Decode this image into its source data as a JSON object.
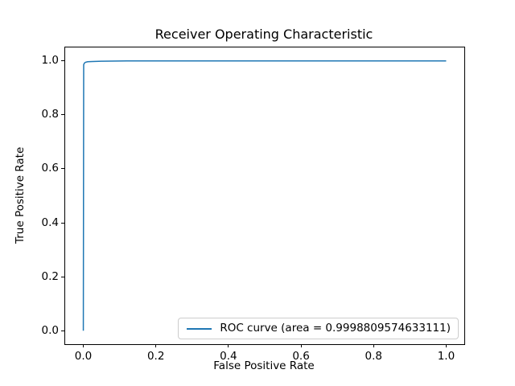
{
  "figure": {
    "background_color": "#ffffff",
    "title": "Receiver Operating Characteristic"
  },
  "axes": {
    "xlabel": "False Positive Rate",
    "ylabel": "True Positive Rate",
    "x_tick_labels": [
      "0.0",
      "0.2",
      "0.4",
      "0.6",
      "0.8",
      "1.0"
    ],
    "y_tick_labels": [
      "0.0",
      "0.2",
      "0.4",
      "0.6",
      "0.8",
      "1.0"
    ],
    "spine_color": "#000000",
    "grid": false
  },
  "legend": {
    "label": "ROC curve (area = 0.9998809574633111)",
    "line_color": "#1f77b4",
    "position": "lower right",
    "border_color": "#cccccc"
  },
  "chart_data": {
    "type": "line",
    "title": "Receiver Operating Characteristic",
    "xlabel": "False Positive Rate",
    "ylabel": "True Positive Rate",
    "xlim": [
      -0.05,
      1.05
    ],
    "ylim": [
      -0.05,
      1.05
    ],
    "x_ticks": [
      0.0,
      0.2,
      0.4,
      0.6,
      0.8,
      1.0
    ],
    "y_ticks": [
      0.0,
      0.2,
      0.4,
      0.6,
      0.8,
      1.0
    ],
    "grid": false,
    "legend_position": "lower right",
    "series": [
      {
        "name": "ROC curve (area = 0.9998809574633111)",
        "color": "#1f77b4",
        "line_width": 1.5,
        "auc": 0.9998809574633111,
        "points": [
          [
            0.0,
            0.0
          ],
          [
            0.001,
            0.986
          ],
          [
            0.003,
            0.992
          ],
          [
            0.006,
            0.995
          ],
          [
            0.012,
            0.997
          ],
          [
            0.025,
            0.998
          ],
          [
            0.05,
            0.999
          ],
          [
            0.12,
            1.0
          ],
          [
            1.0,
            1.0
          ]
        ]
      }
    ]
  }
}
